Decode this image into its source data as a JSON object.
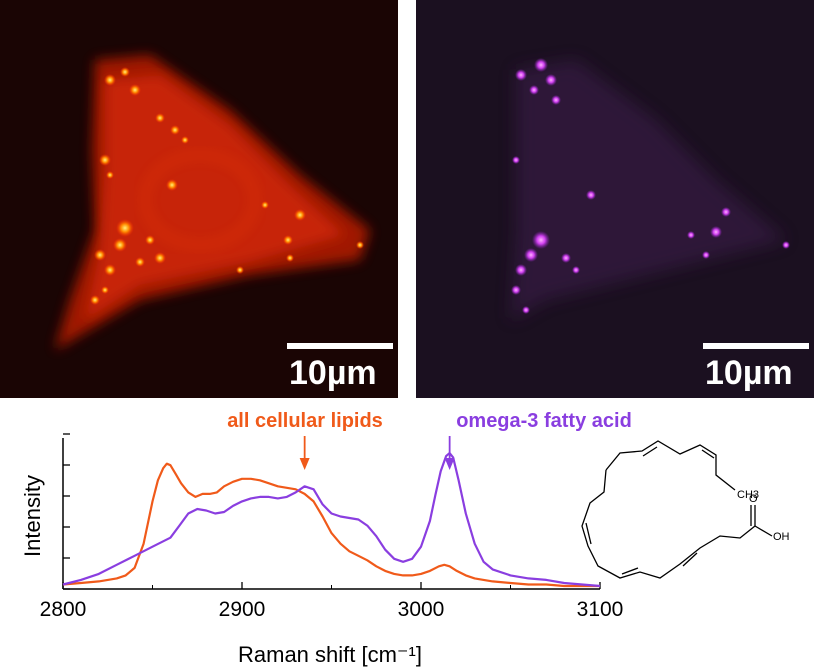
{
  "images": {
    "left": {
      "scalebar_label": "10µm",
      "color": "#ff2a00"
    },
    "right": {
      "scalebar_label": "10µm",
      "color": "#c030e0"
    }
  },
  "annotations": {
    "lipids_label": "all cellular lipids",
    "omega3_label": "omega-3 fatty acid"
  },
  "molecule": {
    "ch3_label": "CH3",
    "oh_label": "OH",
    "o_label": "O"
  },
  "chart_data": {
    "type": "line",
    "xlabel": "Raman shift [cm⁻¹]",
    "ylabel": "Intensity",
    "xlim": [
      2800,
      3100
    ],
    "ylim": [
      0,
      1
    ],
    "xticks": [
      2800,
      2900,
      3000,
      3100
    ],
    "grid": false,
    "series": [
      {
        "name": "all cellular lipids",
        "color": "#f05a1a",
        "x": [
          2800,
          2810,
          2820,
          2830,
          2835,
          2840,
          2845,
          2850,
          2853,
          2856,
          2858,
          2860,
          2863,
          2866,
          2870,
          2874,
          2878,
          2882,
          2886,
          2890,
          2895,
          2900,
          2905,
          2910,
          2915,
          2920,
          2925,
          2930,
          2935,
          2940,
          2945,
          2950,
          2955,
          2960,
          2965,
          2970,
          2975,
          2980,
          2985,
          2990,
          2995,
          3000,
          3005,
          3010,
          3013,
          3016,
          3020,
          3025,
          3030,
          3040,
          3050,
          3060,
          3070,
          3080,
          3090,
          3100
        ],
        "y": [
          0.03,
          0.04,
          0.05,
          0.07,
          0.09,
          0.14,
          0.3,
          0.58,
          0.72,
          0.8,
          0.83,
          0.82,
          0.76,
          0.7,
          0.64,
          0.61,
          0.63,
          0.63,
          0.64,
          0.68,
          0.71,
          0.73,
          0.73,
          0.72,
          0.7,
          0.68,
          0.67,
          0.66,
          0.63,
          0.58,
          0.48,
          0.37,
          0.3,
          0.25,
          0.22,
          0.19,
          0.15,
          0.12,
          0.1,
          0.09,
          0.09,
          0.1,
          0.12,
          0.15,
          0.16,
          0.15,
          0.12,
          0.09,
          0.07,
          0.05,
          0.04,
          0.03,
          0.03,
          0.02,
          0.02,
          0.02
        ]
      },
      {
        "name": "omega-3 fatty acid",
        "color": "#8a3ee0",
        "x": [
          2800,
          2810,
          2820,
          2830,
          2840,
          2850,
          2860,
          2865,
          2870,
          2875,
          2880,
          2885,
          2890,
          2895,
          2900,
          2905,
          2910,
          2915,
          2920,
          2925,
          2930,
          2935,
          2940,
          2945,
          2950,
          2955,
          2960,
          2965,
          2970,
          2975,
          2980,
          2985,
          2990,
          2995,
          3000,
          3005,
          3008,
          3011,
          3014,
          3016,
          3018,
          3021,
          3025,
          3030,
          3035,
          3040,
          3050,
          3060,
          3070,
          3080,
          3090,
          3100
        ],
        "y": [
          0.03,
          0.06,
          0.1,
          0.16,
          0.22,
          0.28,
          0.34,
          0.42,
          0.5,
          0.53,
          0.52,
          0.5,
          0.51,
          0.55,
          0.58,
          0.6,
          0.61,
          0.61,
          0.6,
          0.61,
          0.64,
          0.68,
          0.66,
          0.56,
          0.5,
          0.48,
          0.47,
          0.46,
          0.42,
          0.35,
          0.26,
          0.2,
          0.18,
          0.2,
          0.28,
          0.45,
          0.62,
          0.78,
          0.88,
          0.9,
          0.87,
          0.72,
          0.5,
          0.3,
          0.18,
          0.13,
          0.09,
          0.07,
          0.06,
          0.04,
          0.03,
          0.02
        ]
      }
    ],
    "annotation_arrows": [
      {
        "label": "all cellular lipids",
        "x": 2935
      },
      {
        "label": "omega-3 fatty acid",
        "x": 3016
      }
    ]
  }
}
